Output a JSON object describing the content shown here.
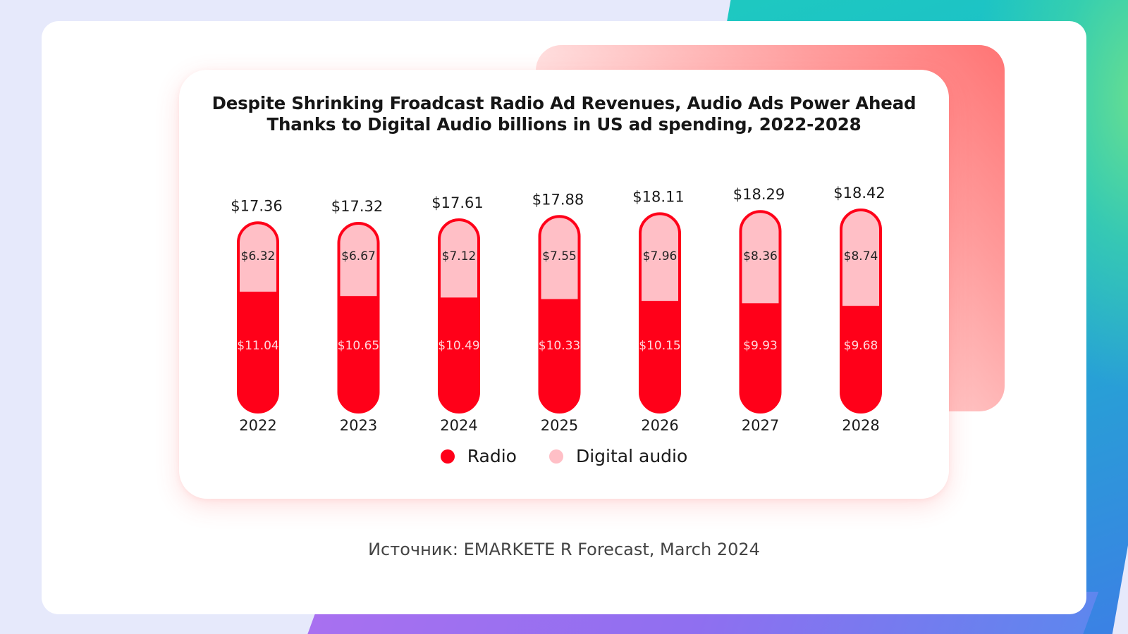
{
  "colors": {
    "radio": "#ff0019",
    "digital": "#ffbfc6",
    "radio_label": "#ffd6dc",
    "digital_label": "#222222"
  },
  "source": "Источник: EMARKETE R Forecast, March 2024",
  "chart_data": {
    "type": "bar",
    "stacked": true,
    "title_lines": [
      "Despite Shrinking Froadcast Radio Ad Revenues, Audio Ads Power Ahead",
      "Thanks to Digital Audio billions in US ad spending, 2022-2028"
    ],
    "xlabel": "",
    "ylabel": "",
    "categories": [
      "2022",
      "2023",
      "2024",
      "2025",
      "2026",
      "2027",
      "2028"
    ],
    "series": [
      {
        "name": "Radio",
        "values": [
          11.04,
          10.65,
          10.49,
          10.33,
          10.15,
          9.93,
          9.68
        ],
        "labels": [
          "$11.04",
          "$10.65",
          "$10.49",
          "$10.33",
          "$10.15",
          "$9.93",
          "$9.68"
        ]
      },
      {
        "name": "Digital audio",
        "values": [
          6.32,
          6.67,
          7.12,
          7.55,
          7.96,
          8.36,
          8.74
        ],
        "labels": [
          "$6.32",
          "$6.67",
          "$7.12",
          "$7.55",
          "$7.96",
          "$8.36",
          "$8.74"
        ]
      }
    ],
    "totals": [
      17.36,
      17.32,
      17.61,
      17.88,
      18.11,
      18.29,
      18.42
    ],
    "total_labels": [
      "$17.36",
      "$17.32",
      "$17.61",
      "$17.88",
      "$18.11",
      "$18.29",
      "$18.42"
    ],
    "grid": false,
    "legend": "bottom-center"
  }
}
